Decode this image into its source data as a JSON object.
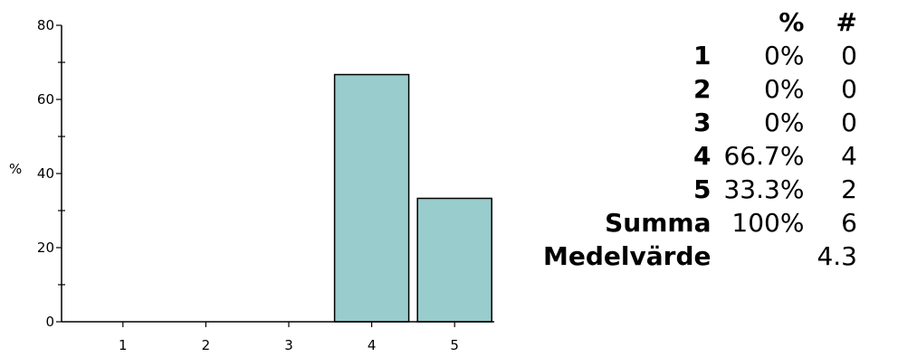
{
  "chart_data": {
    "type": "bar",
    "categories": [
      "1",
      "2",
      "3",
      "4",
      "5"
    ],
    "values": [
      0,
      0,
      0,
      66.7,
      33.3
    ],
    "title": "",
    "xlabel": "",
    "ylabel": "%",
    "ylim": [
      0,
      80
    ],
    "yticks": [
      "0",
      "20",
      "40",
      "60",
      "80"
    ],
    "bar_color": "#99cccc",
    "grid": false
  },
  "table": {
    "headers": [
      "",
      "%",
      "#"
    ],
    "rows": [
      {
        "label": "1",
        "percent": "0%",
        "count": "0"
      },
      {
        "label": "2",
        "percent": "0%",
        "count": "0"
      },
      {
        "label": "3",
        "percent": "0%",
        "count": "0"
      },
      {
        "label": "4",
        "percent": "66.7%",
        "count": "4"
      },
      {
        "label": "5",
        "percent": "33.3%",
        "count": "2"
      },
      {
        "label": "Summa",
        "percent": "100%",
        "count": "6"
      },
      {
        "label": "Medelvärde",
        "percent": "",
        "count": "4.3"
      }
    ]
  }
}
